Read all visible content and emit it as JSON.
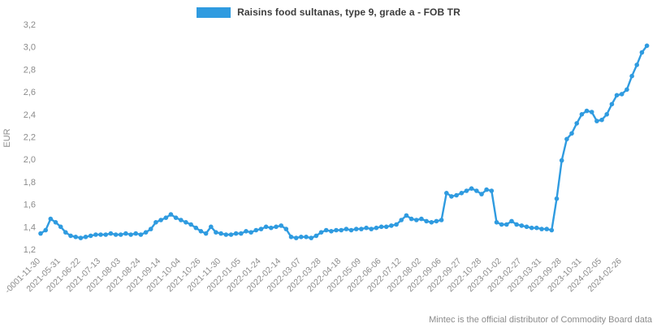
{
  "legend": {
    "label": "Raisins food sultanas, type 9, grade a - FOB TR",
    "color": "#2F9BE0"
  },
  "footer": {
    "text": "Mintec is the official distributor of Commodity Board data"
  },
  "chart_data": {
    "type": "line",
    "series_name": "Raisins food sultanas, type 9, grade a - FOB TR",
    "ylabel": "EUR",
    "ylim": [
      1.2,
      3.2
    ],
    "y_tick_step": 0.2,
    "y_tick_format": "comma-decimal",
    "grid": false,
    "legend_position": "top-center",
    "line_color": "#2F9BE0",
    "marker": "circle",
    "x_tick_labels": [
      "-0001-11-30",
      "2021-05-31",
      "2021-06-22",
      "2021-07-13",
      "2021-08-03",
      "2021-08-24",
      "2021-09-14",
      "2021-10-04",
      "2021-10-26",
      "2021-11-30",
      "2022-01-05",
      "2022-01-24",
      "2022-02-14",
      "2022-03-07",
      "2022-03-28",
      "2022-04-18",
      "2022-05-09",
      "2022-06-06",
      "2022-07-12",
      "2022-08-02",
      "2022-09-06",
      "2022-09-27",
      "2022-10-28",
      "2023-01-02",
      "2023-02-27",
      "2023-03-31",
      "2023-09-28",
      "2023-10-31",
      "2024-02-05",
      "2024-02-26"
    ],
    "label_every": 4,
    "values": [
      1.34,
      1.37,
      1.47,
      1.44,
      1.4,
      1.35,
      1.32,
      1.31,
      1.3,
      1.31,
      1.32,
      1.33,
      1.33,
      1.33,
      1.34,
      1.33,
      1.33,
      1.34,
      1.33,
      1.34,
      1.33,
      1.35,
      1.38,
      1.44,
      1.46,
      1.48,
      1.51,
      1.48,
      1.46,
      1.44,
      1.42,
      1.39,
      1.36,
      1.34,
      1.4,
      1.35,
      1.34,
      1.33,
      1.33,
      1.34,
      1.34,
      1.36,
      1.35,
      1.37,
      1.38,
      1.4,
      1.39,
      1.4,
      1.41,
      1.38,
      1.31,
      1.3,
      1.31,
      1.31,
      1.3,
      1.32,
      1.35,
      1.37,
      1.36,
      1.37,
      1.37,
      1.38,
      1.37,
      1.38,
      1.38,
      1.39,
      1.38,
      1.39,
      1.4,
      1.4,
      1.41,
      1.42,
      1.46,
      1.5,
      1.47,
      1.46,
      1.47,
      1.45,
      1.44,
      1.45,
      1.46,
      1.7,
      1.67,
      1.68,
      1.7,
      1.72,
      1.74,
      1.72,
      1.69,
      1.73,
      1.72,
      1.44,
      1.42,
      1.42,
      1.45,
      1.42,
      1.41,
      1.4,
      1.39,
      1.39,
      1.38,
      1.38,
      1.37,
      1.65,
      1.99,
      2.18,
      2.23,
      2.32,
      2.4,
      2.43,
      2.42,
      2.34,
      2.35,
      2.4,
      2.49,
      2.57,
      2.58,
      2.62,
      2.74,
      2.84,
      2.95,
      3.01
    ]
  }
}
